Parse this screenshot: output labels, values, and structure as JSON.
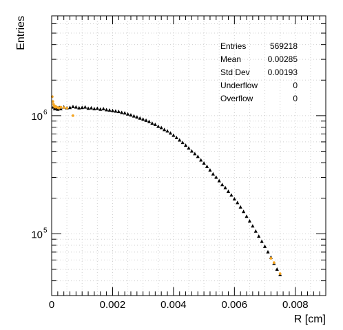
{
  "chart_data": {
    "type": "scatter",
    "title": "",
    "xlabel": "R [cm]",
    "ylabel": "Entries",
    "xlim": [
      0,
      0.009
    ],
    "ylim": [
      30000,
      7000000
    ],
    "yscale": "log",
    "grid": true,
    "x_ticks": [
      0,
      0.002,
      0.004,
      0.006,
      0.008
    ],
    "x_tick_labels": [
      "0",
      "0.002",
      "0.004",
      "0.006",
      "0.008"
    ],
    "y_major_ticks": [
      100000,
      1000000
    ],
    "y_tick_labels": [
      {
        "base": "10",
        "exp": "5"
      },
      {
        "base": "10",
        "exp": "6"
      }
    ],
    "stats_box": {
      "placement": "top-right",
      "rows": [
        {
          "label": "Entries",
          "value": "569218"
        },
        {
          "label": "Mean",
          "value": "0.00285"
        },
        {
          "label": "Std Dev",
          "value": "0.00193"
        },
        {
          "label": "Underflow",
          "value": "0"
        },
        {
          "label": "Overflow",
          "value": "0"
        }
      ]
    },
    "series": [
      {
        "color": "#000000",
        "marker": "triangle",
        "points": [
          [
            5e-05,
            1180000
          ],
          [
            0.0001,
            1140000
          ],
          [
            0.00015,
            1160000
          ],
          [
            0.0002,
            1130000
          ],
          [
            0.00025,
            1170000
          ],
          [
            0.0003,
            1140000
          ],
          [
            0.0004,
            1180000
          ],
          [
            0.0005,
            1160000
          ],
          [
            0.0006,
            1170000
          ],
          [
            0.0007,
            1190000
          ],
          [
            0.0008,
            1180000
          ],
          [
            0.0009,
            1160000
          ],
          [
            0.001,
            1170000
          ],
          [
            0.0011,
            1180000
          ],
          [
            0.0012,
            1150000
          ],
          [
            0.0013,
            1160000
          ],
          [
            0.0014,
            1140000
          ],
          [
            0.0015,
            1150000
          ],
          [
            0.0016,
            1130000
          ],
          [
            0.0017,
            1140000
          ],
          [
            0.0018,
            1120000
          ],
          [
            0.0019,
            1110000
          ],
          [
            0.002,
            1100000
          ],
          [
            0.0021,
            1090000
          ],
          [
            0.0022,
            1080000
          ],
          [
            0.0023,
            1060000
          ],
          [
            0.0024,
            1050000
          ],
          [
            0.0025,
            1030000
          ],
          [
            0.0026,
            1010000
          ],
          [
            0.0027,
            990000
          ],
          [
            0.0028,
            970000
          ],
          [
            0.0029,
            950000
          ],
          [
            0.003,
            930000
          ],
          [
            0.0031,
            910000
          ],
          [
            0.0032,
            890000
          ],
          [
            0.0033,
            860000
          ],
          [
            0.0034,
            840000
          ],
          [
            0.0035,
            810000
          ],
          [
            0.0036,
            790000
          ],
          [
            0.0037,
            760000
          ],
          [
            0.0038,
            740000
          ],
          [
            0.0039,
            710000
          ],
          [
            0.004,
            680000
          ],
          [
            0.0041,
            650000
          ],
          [
            0.0042,
            620000
          ],
          [
            0.0043,
            590000
          ],
          [
            0.0044,
            560000
          ],
          [
            0.0045,
            530000
          ],
          [
            0.0046,
            500000
          ],
          [
            0.0047,
            475000
          ],
          [
            0.0048,
            450000
          ],
          [
            0.0049,
            420000
          ],
          [
            0.005,
            395000
          ],
          [
            0.0051,
            370000
          ],
          [
            0.0052,
            345000
          ],
          [
            0.0053,
            320000
          ],
          [
            0.0054,
            300000
          ],
          [
            0.0055,
            280000
          ],
          [
            0.0056,
            260000
          ],
          [
            0.0057,
            245000
          ],
          [
            0.0058,
            228000
          ],
          [
            0.0059,
            212000
          ],
          [
            0.006,
            197000
          ],
          [
            0.0061,
            183000
          ],
          [
            0.0062,
            168000
          ],
          [
            0.0063,
            154000
          ],
          [
            0.0064,
            140000
          ],
          [
            0.0065,
            128000
          ],
          [
            0.0066,
            116000
          ],
          [
            0.0067,
            105000
          ],
          [
            0.0068,
            95000
          ],
          [
            0.0069,
            86000
          ],
          [
            0.007,
            78000
          ],
          [
            0.0071,
            70000
          ],
          [
            0.0072,
            63000
          ],
          [
            0.0073,
            56000
          ],
          [
            0.0074,
            50000
          ],
          [
            0.0075,
            45000
          ]
        ]
      },
      {
        "color": "#f5a623",
        "marker": "circle",
        "points": [
          [
            2e-05,
            1450000
          ],
          [
            4e-05,
            1320000
          ],
          [
            6e-05,
            1250000
          ],
          [
            8e-05,
            1200000
          ],
          [
            0.0001,
            1210000
          ],
          [
            0.00012,
            1180000
          ],
          [
            0.00015,
            1190000
          ],
          [
            0.0002,
            1170000
          ],
          [
            0.00025,
            1160000
          ],
          [
            0.0003,
            1180000
          ],
          [
            0.0004,
            1170000
          ],
          [
            0.0005,
            1160000
          ],
          [
            0.0007,
            1000000
          ],
          [
            0.0072,
            62000
          ],
          [
            0.0073,
            57000
          ],
          [
            0.0075,
            46000
          ]
        ]
      }
    ]
  }
}
